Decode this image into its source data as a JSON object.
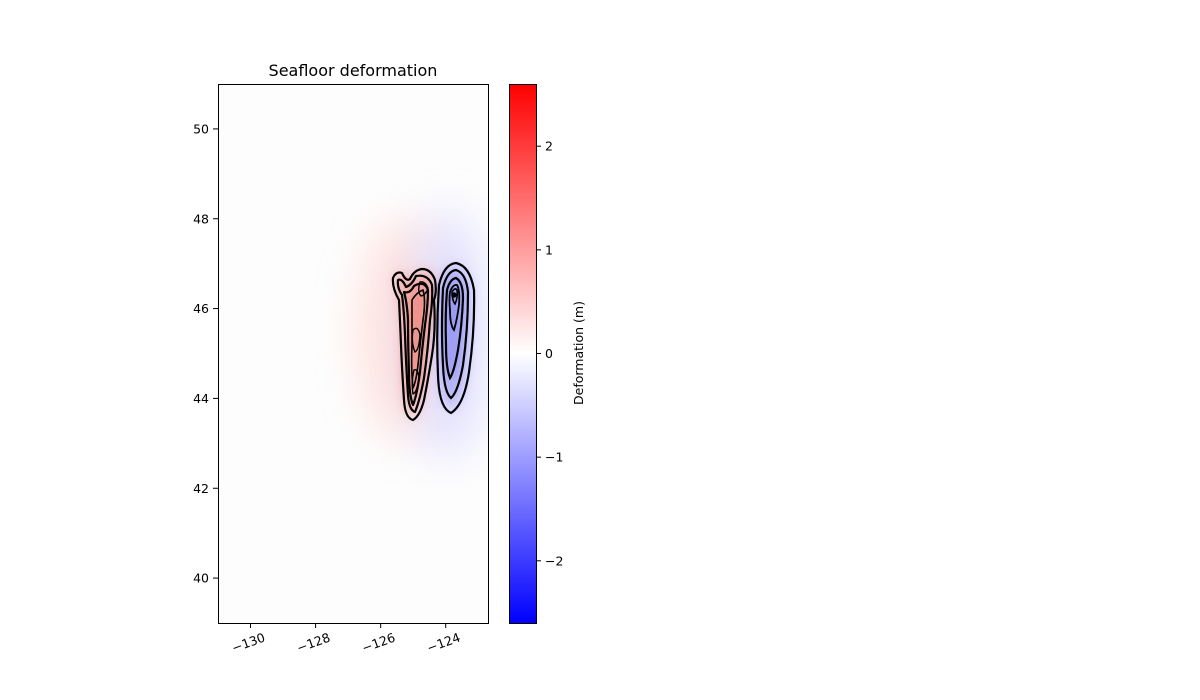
{
  "chart_data": {
    "type": "heatmap",
    "title": "Seafloor deformation",
    "xlabel": "",
    "ylabel": "",
    "xlim": [
      -131,
      -122.7
    ],
    "ylim": [
      39,
      51
    ],
    "x_ticks": [
      -130,
      -128,
      -126,
      -124
    ],
    "x_tick_labels": [
      "−130",
      "−128",
      "−126",
      "−124"
    ],
    "y_ticks": [
      40,
      42,
      44,
      46,
      48,
      50
    ],
    "y_tick_labels": [
      "40",
      "42",
      "44",
      "46",
      "48",
      "50"
    ],
    "grid": false,
    "colormap": "bwr",
    "colorbar": {
      "label": "Deformation (m)",
      "vmin": -2.6,
      "vmax": 2.6,
      "ticks": [
        -2,
        -1,
        0,
        1,
        2
      ],
      "tick_labels": [
        "−2",
        "−1",
        "0",
        "1",
        "2"
      ],
      "low_color": "#0000ff",
      "mid_color": "#ffffff",
      "high_color": "#ff0000"
    },
    "uplift_zone": {
      "lon_range": [
        -125.6,
        -124.2
      ],
      "lat_range": [
        43.6,
        46.8
      ],
      "peak_deformation_m": 1.3,
      "peak_location": [
        -124.5,
        46.3
      ]
    },
    "subsidence_zone": {
      "lon_range": [
        -124.4,
        -123.0
      ],
      "lat_range": [
        43.7,
        47.0
      ],
      "min_deformation_m": -1.0,
      "min_location": [
        -123.6,
        46.3
      ]
    },
    "contour_color": "#000000"
  }
}
